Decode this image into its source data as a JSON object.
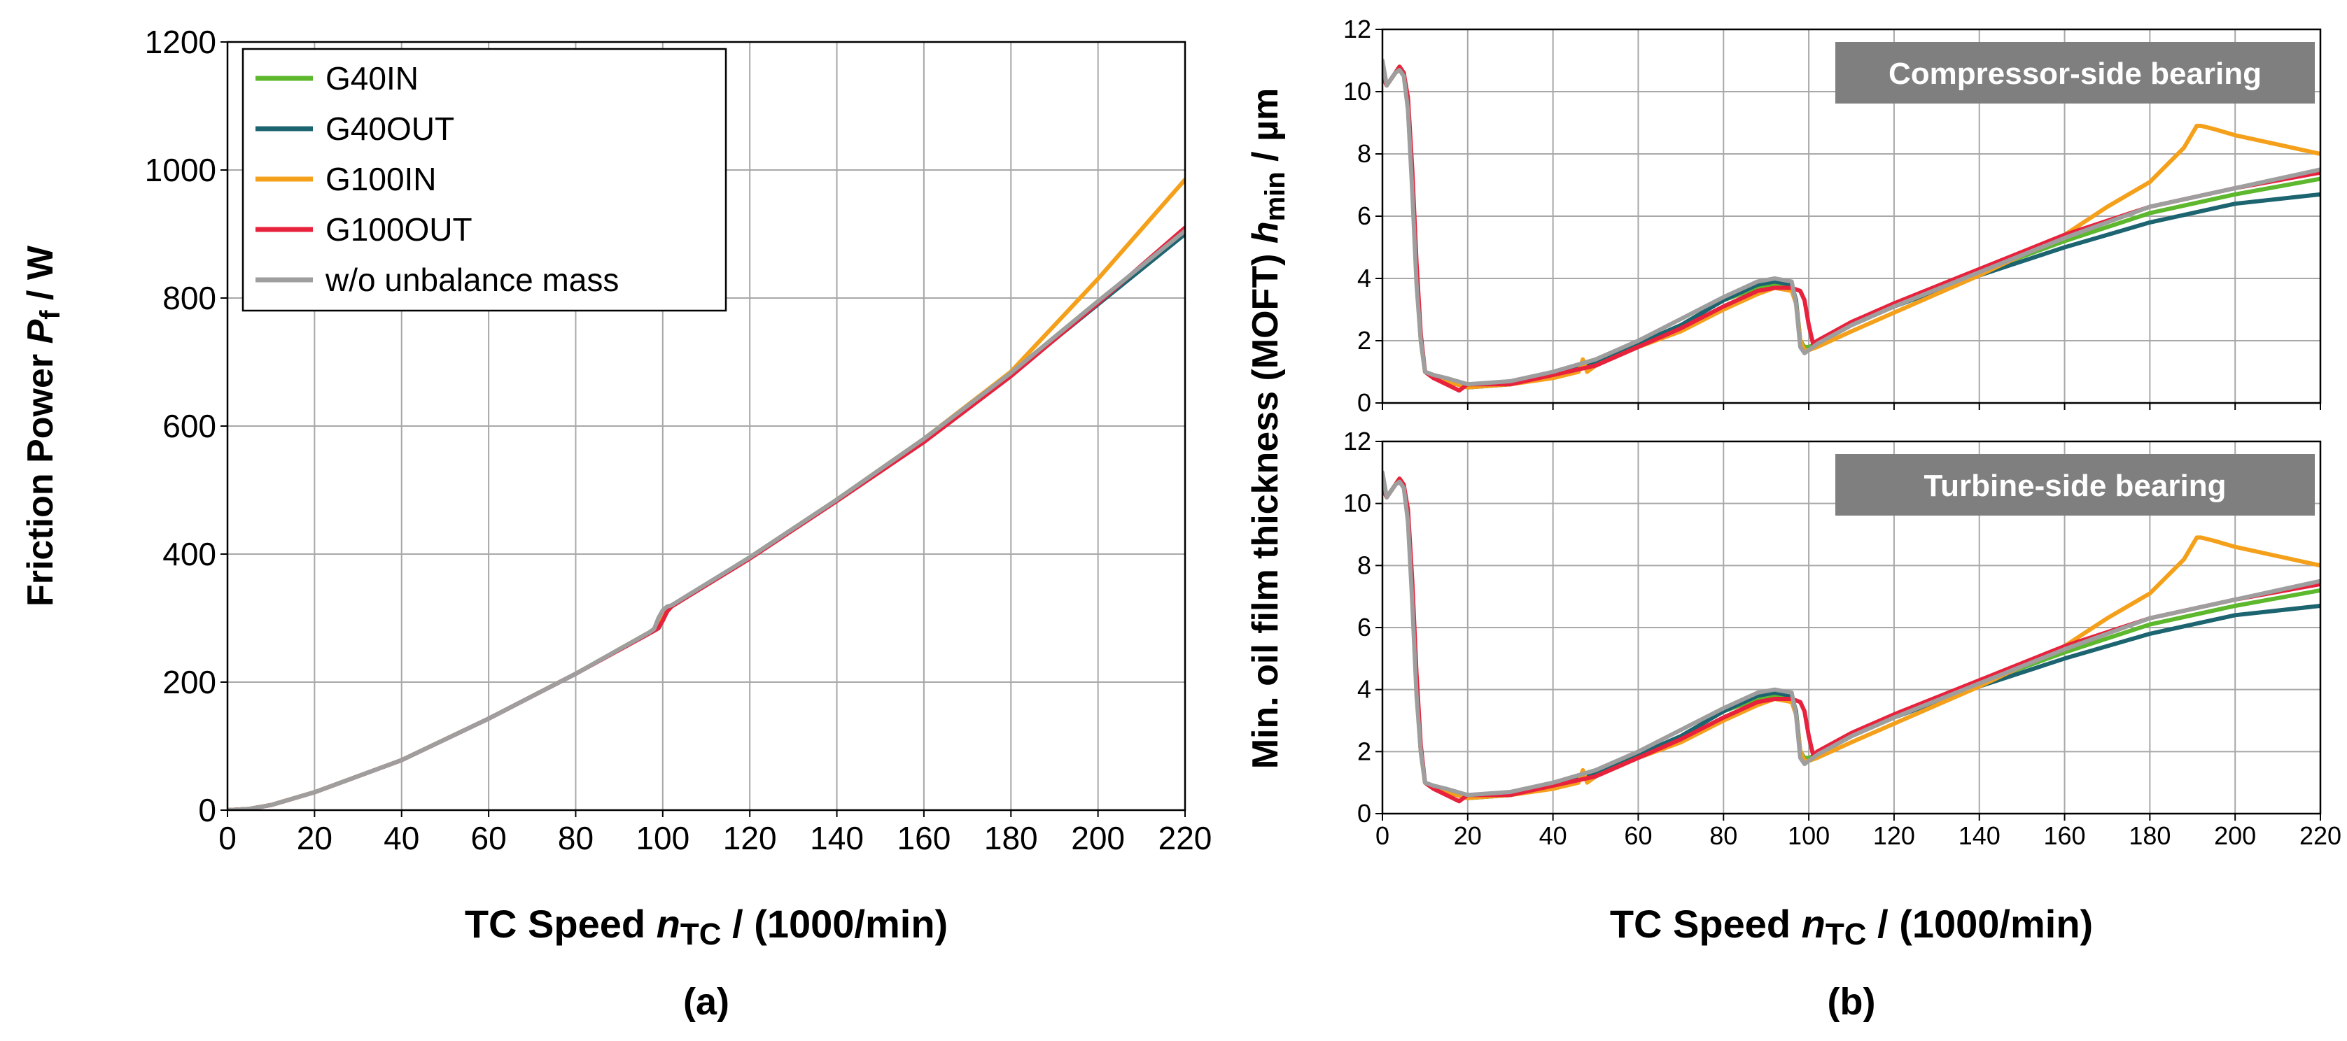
{
  "chart_data": [
    {
      "type": "line",
      "panel_label": "(a)",
      "title": "",
      "xlabel_parts": [
        "TC Speed ",
        "n",
        "TC",
        " / (1000/min)"
      ],
      "ylabel_parts": [
        "Friction Power ",
        "P",
        "f",
        " / W"
      ],
      "xlim": [
        0,
        220
      ],
      "ylim": [
        0,
        1200
      ],
      "xticks": [
        0,
        20,
        40,
        60,
        80,
        100,
        120,
        140,
        160,
        180,
        200,
        220
      ],
      "yticks": [
        0,
        200,
        400,
        600,
        800,
        1000,
        1200
      ],
      "grid": true,
      "legend_position": "top-left",
      "legend": [
        "G40IN",
        "G40OUT",
        "G100IN",
        "G100OUT",
        "w/o unbalance mass"
      ],
      "series": [
        {
          "name": "G40IN",
          "color": "#5db82e",
          "x": [
            0,
            5,
            10,
            20,
            40,
            60,
            80,
            97,
            98,
            100,
            101,
            102,
            120,
            140,
            160,
            180,
            200,
            220
          ],
          "y": [
            0,
            2,
            8,
            28,
            78,
            143,
            213,
            278,
            283,
            305,
            315,
            318,
            395,
            485,
            580,
            683,
            795,
            903
          ]
        },
        {
          "name": "G40OUT",
          "color": "#1c6470",
          "x": [
            0,
            5,
            10,
            20,
            40,
            60,
            80,
            97,
            98,
            100,
            101,
            102,
            120,
            140,
            160,
            180,
            200,
            220
          ],
          "y": [
            0,
            2,
            8,
            28,
            78,
            143,
            213,
            278,
            283,
            305,
            315,
            318,
            395,
            485,
            580,
            680,
            790,
            900
          ]
        },
        {
          "name": "G100IN",
          "color": "#f5a01a",
          "x": [
            0,
            5,
            10,
            20,
            40,
            60,
            80,
            97,
            98,
            100,
            101,
            102,
            120,
            140,
            160,
            180,
            200,
            220
          ],
          "y": [
            0,
            2,
            8,
            28,
            78,
            143,
            213,
            278,
            283,
            305,
            315,
            318,
            395,
            485,
            580,
            685,
            830,
            985
          ]
        },
        {
          "name": "G100OUT",
          "color": "#e8213d",
          "x": [
            0,
            5,
            10,
            20,
            40,
            60,
            80,
            98,
            99,
            100,
            101,
            102,
            120,
            140,
            160,
            180,
            200,
            220
          ],
          "y": [
            0,
            2,
            8,
            28,
            78,
            143,
            213,
            280,
            284,
            296,
            310,
            318,
            393,
            483,
            575,
            678,
            792,
            910
          ]
        },
        {
          "name": "w/o unbalance mass",
          "color": "#9e9e9e",
          "x": [
            0,
            5,
            10,
            20,
            40,
            60,
            80,
            97,
            98,
            99,
            100,
            101,
            102,
            120,
            140,
            160,
            180,
            200,
            220
          ],
          "y": [
            0,
            2,
            8,
            28,
            78,
            143,
            213,
            278,
            283,
            300,
            312,
            318,
            320,
            395,
            485,
            580,
            683,
            795,
            905
          ]
        }
      ]
    },
    {
      "type": "line",
      "panel_label": "(b)",
      "title": "Compressor-side bearing",
      "xlabel_parts": [
        "TC Speed ",
        "n",
        "TC",
        " / (1000/min)"
      ],
      "ylabel_parts": [
        "Min. oil film thickness (MOFT) ",
        "h",
        "min",
        " / µm"
      ],
      "xlim": [
        0,
        220
      ],
      "ylim": [
        0,
        12
      ],
      "xticks": [
        0,
        20,
        40,
        60,
        80,
        100,
        120,
        140,
        160,
        180,
        200,
        220
      ],
      "yticks": [
        0,
        2,
        4,
        6,
        8,
        10,
        12
      ],
      "grid": true,
      "series": [
        {
          "name": "G40IN",
          "color": "#5db82e",
          "x": [
            0,
            1,
            2,
            3,
            4,
            5,
            6,
            7,
            8,
            9,
            10,
            12,
            15,
            20,
            30,
            40,
            50,
            60,
            70,
            80,
            88,
            92,
            96,
            97,
            98,
            99,
            100,
            102,
            110,
            120,
            140,
            160,
            180,
            200,
            220
          ],
          "y": [
            10.5,
            10.2,
            10.4,
            10.6,
            10.8,
            10.6,
            9.5,
            7.0,
            4.0,
            2.0,
            1.0,
            0.8,
            0.7,
            0.5,
            0.6,
            0.9,
            1.3,
            1.9,
            2.5,
            3.3,
            3.7,
            3.8,
            3.8,
            3.3,
            2.0,
            1.8,
            1.8,
            1.9,
            2.5,
            3.1,
            4.2,
            5.2,
            6.1,
            6.7,
            7.2
          ]
        },
        {
          "name": "G40OUT",
          "color": "#1c6470",
          "x": [
            0,
            1,
            2,
            3,
            4,
            5,
            6,
            7,
            8,
            9,
            10,
            12,
            15,
            20,
            30,
            40,
            50,
            60,
            70,
            80,
            88,
            92,
            96,
            97,
            98,
            99,
            100,
            102,
            110,
            120,
            140,
            160,
            180,
            200,
            220
          ],
          "y": [
            10.5,
            10.2,
            10.4,
            10.6,
            10.8,
            10.6,
            9.5,
            7.0,
            4.0,
            2.0,
            1.0,
            0.8,
            0.7,
            0.5,
            0.6,
            0.9,
            1.3,
            1.9,
            2.5,
            3.3,
            3.8,
            3.9,
            3.8,
            3.3,
            2.0,
            1.7,
            1.7,
            1.9,
            2.5,
            3.1,
            4.1,
            5.0,
            5.8,
            6.4,
            6.7
          ]
        },
        {
          "name": "G100IN",
          "color": "#f5a01a",
          "x": [
            0,
            1,
            2,
            3,
            4,
            5,
            6,
            7,
            8,
            9,
            10,
            12,
            15,
            20,
            30,
            40,
            46,
            47,
            48,
            50,
            60,
            70,
            80,
            88,
            92,
            96,
            97,
            98,
            99,
            100,
            102,
            110,
            120,
            140,
            160,
            170,
            180,
            188,
            191,
            192,
            195,
            200,
            210,
            220
          ],
          "y": [
            10.5,
            10.2,
            10.4,
            10.6,
            10.8,
            10.6,
            9.5,
            7.0,
            4.0,
            2.0,
            1.0,
            0.8,
            0.7,
            0.5,
            0.6,
            0.8,
            1.0,
            1.4,
            1.0,
            1.2,
            1.8,
            2.3,
            3.0,
            3.5,
            3.7,
            3.6,
            3.2,
            2.0,
            1.7,
            1.7,
            1.8,
            2.3,
            2.9,
            4.1,
            5.4,
            6.3,
            7.1,
            8.2,
            8.9,
            8.9,
            8.8,
            8.6,
            8.3,
            8.0
          ]
        },
        {
          "name": "G100OUT",
          "color": "#e8213d",
          "x": [
            0,
            1,
            2,
            3,
            4,
            5,
            6,
            7,
            8,
            9,
            10,
            12,
            15,
            18,
            20,
            30,
            40,
            50,
            60,
            70,
            80,
            88,
            92,
            96,
            98,
            99,
            100,
            101,
            102,
            110,
            120,
            140,
            160,
            180,
            200,
            220
          ],
          "y": [
            10.5,
            10.2,
            10.4,
            10.6,
            10.8,
            10.6,
            9.8,
            7.5,
            4.5,
            2.2,
            1.0,
            0.8,
            0.6,
            0.4,
            0.6,
            0.6,
            0.9,
            1.2,
            1.8,
            2.4,
            3.1,
            3.6,
            3.7,
            3.7,
            3.6,
            3.3,
            2.5,
            1.9,
            2.0,
            2.6,
            3.2,
            4.3,
            5.4,
            6.3,
            6.9,
            7.4
          ]
        },
        {
          "name": "w/o unbalance mass",
          "color": "#9e9e9e",
          "x": [
            0,
            1,
            2,
            3,
            4,
            5,
            6,
            7,
            8,
            9,
            10,
            12,
            15,
            20,
            30,
            40,
            50,
            60,
            70,
            80,
            88,
            92,
            96,
            97,
            98,
            99,
            100,
            102,
            110,
            120,
            140,
            160,
            180,
            200,
            220
          ],
          "y": [
            11.0,
            10.2,
            10.4,
            10.6,
            10.7,
            10.5,
            9.4,
            6.8,
            3.8,
            2.0,
            1.0,
            0.9,
            0.8,
            0.6,
            0.7,
            1.0,
            1.4,
            2.0,
            2.7,
            3.4,
            3.9,
            4.0,
            3.9,
            3.2,
            1.8,
            1.6,
            1.7,
            1.9,
            2.5,
            3.1,
            4.2,
            5.3,
            6.3,
            6.9,
            7.5
          ]
        }
      ]
    },
    {
      "type": "line",
      "panel_label": "(b)",
      "title": "Turbine-side bearing",
      "xlim": [
        0,
        220
      ],
      "ylim": [
        0,
        12
      ],
      "xticks": [
        0,
        20,
        40,
        60,
        80,
        100,
        120,
        140,
        160,
        180,
        200,
        220
      ],
      "yticks": [
        0,
        2,
        4,
        6,
        8,
        10,
        12
      ],
      "grid": true,
      "series": [
        {
          "name": "G40IN",
          "color": "#5db82e",
          "x": [
            0,
            1,
            2,
            3,
            4,
            5,
            6,
            7,
            8,
            9,
            10,
            12,
            15,
            20,
            30,
            40,
            50,
            60,
            70,
            80,
            88,
            92,
            96,
            97,
            98,
            99,
            100,
            102,
            110,
            120,
            140,
            160,
            180,
            200,
            220
          ],
          "y": [
            10.5,
            10.2,
            10.4,
            10.6,
            10.8,
            10.6,
            9.5,
            7.0,
            4.0,
            2.0,
            1.0,
            0.8,
            0.7,
            0.5,
            0.6,
            0.9,
            1.3,
            1.9,
            2.5,
            3.3,
            3.7,
            3.8,
            3.8,
            3.3,
            2.0,
            1.8,
            1.8,
            1.9,
            2.5,
            3.1,
            4.2,
            5.2,
            6.1,
            6.7,
            7.2
          ]
        },
        {
          "name": "G40OUT",
          "color": "#1c6470",
          "x": [
            0,
            1,
            2,
            3,
            4,
            5,
            6,
            7,
            8,
            9,
            10,
            12,
            15,
            20,
            30,
            40,
            50,
            60,
            70,
            80,
            88,
            92,
            96,
            97,
            98,
            99,
            100,
            102,
            110,
            120,
            140,
            160,
            180,
            200,
            220
          ],
          "y": [
            10.5,
            10.2,
            10.4,
            10.6,
            10.8,
            10.6,
            9.5,
            7.0,
            4.0,
            2.0,
            1.0,
            0.8,
            0.7,
            0.5,
            0.6,
            0.9,
            1.3,
            1.9,
            2.5,
            3.3,
            3.8,
            3.9,
            3.8,
            3.3,
            2.0,
            1.7,
            1.7,
            1.9,
            2.5,
            3.1,
            4.1,
            5.0,
            5.8,
            6.4,
            6.7
          ]
        },
        {
          "name": "G100IN",
          "color": "#f5a01a",
          "x": [
            0,
            1,
            2,
            3,
            4,
            5,
            6,
            7,
            8,
            9,
            10,
            12,
            15,
            20,
            30,
            40,
            46,
            47,
            48,
            50,
            60,
            70,
            80,
            88,
            92,
            96,
            97,
            98,
            99,
            100,
            102,
            110,
            120,
            140,
            160,
            170,
            180,
            188,
            191,
            192,
            195,
            200,
            210,
            220
          ],
          "y": [
            10.5,
            10.2,
            10.4,
            10.6,
            10.8,
            10.6,
            9.5,
            7.0,
            4.0,
            2.0,
            1.0,
            0.8,
            0.7,
            0.5,
            0.6,
            0.8,
            1.0,
            1.4,
            1.0,
            1.2,
            1.8,
            2.3,
            3.0,
            3.5,
            3.7,
            3.6,
            3.2,
            2.0,
            1.7,
            1.7,
            1.8,
            2.3,
            2.9,
            4.1,
            5.4,
            6.3,
            7.1,
            8.2,
            8.9,
            8.9,
            8.8,
            8.6,
            8.3,
            8.0
          ]
        },
        {
          "name": "G100OUT",
          "color": "#e8213d",
          "x": [
            0,
            1,
            2,
            3,
            4,
            5,
            6,
            7,
            8,
            9,
            10,
            12,
            15,
            18,
            20,
            30,
            40,
            50,
            60,
            70,
            80,
            88,
            92,
            96,
            98,
            99,
            100,
            101,
            102,
            110,
            120,
            140,
            160,
            180,
            200,
            220
          ],
          "y": [
            10.5,
            10.2,
            10.4,
            10.6,
            10.8,
            10.6,
            9.8,
            7.5,
            4.5,
            2.2,
            1.0,
            0.8,
            0.6,
            0.4,
            0.6,
            0.6,
            0.9,
            1.2,
            1.8,
            2.4,
            3.1,
            3.6,
            3.7,
            3.7,
            3.6,
            3.3,
            2.5,
            1.9,
            2.0,
            2.6,
            3.2,
            4.3,
            5.4,
            6.3,
            6.9,
            7.4
          ]
        },
        {
          "name": "w/o unbalance mass",
          "color": "#9e9e9e",
          "x": [
            0,
            1,
            2,
            3,
            4,
            5,
            6,
            7,
            8,
            9,
            10,
            12,
            15,
            20,
            30,
            40,
            50,
            60,
            70,
            80,
            88,
            92,
            96,
            97,
            98,
            99,
            100,
            102,
            110,
            120,
            140,
            160,
            180,
            200,
            220
          ],
          "y": [
            11.0,
            10.2,
            10.4,
            10.6,
            10.7,
            10.5,
            9.4,
            6.8,
            3.8,
            2.0,
            1.0,
            0.9,
            0.8,
            0.6,
            0.7,
            1.0,
            1.4,
            2.0,
            2.7,
            3.4,
            3.9,
            4.0,
            3.9,
            3.2,
            1.8,
            1.6,
            1.7,
            1.9,
            2.5,
            3.1,
            4.2,
            5.3,
            6.3,
            6.9,
            7.5
          ]
        }
      ]
    }
  ]
}
